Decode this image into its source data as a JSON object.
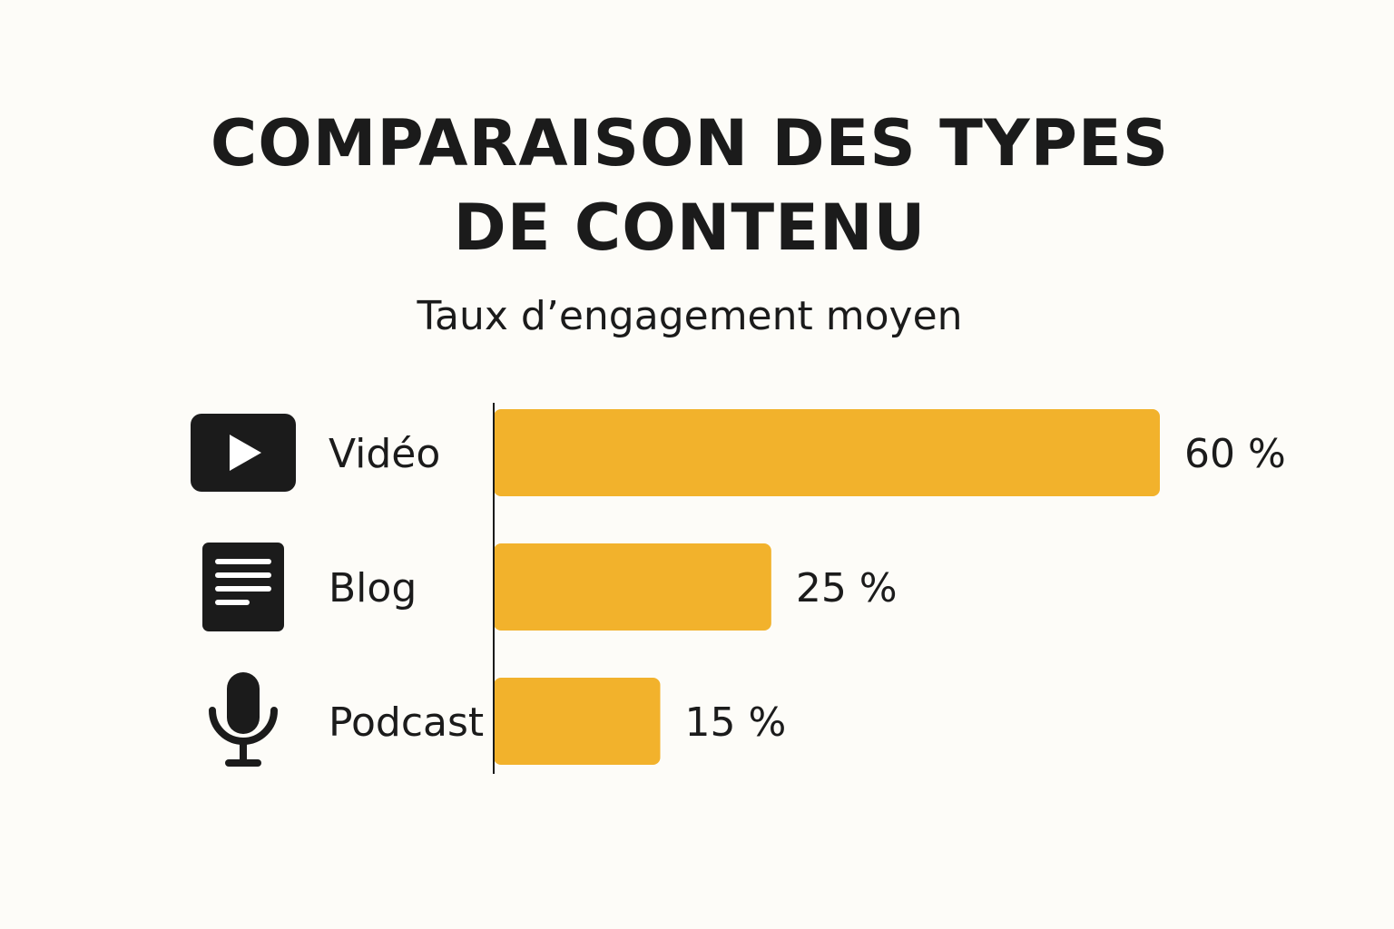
{
  "chart_data": {
    "type": "bar",
    "orientation": "horizontal",
    "title": "COMPARAISON DES TYPES DE CONTENU",
    "title_lines": [
      "COMPARAISON DES TYPES",
      "DE CONTENU"
    ],
    "subtitle": "Taux d’engagement moyen",
    "categories": [
      "Vidéo",
      "Blog",
      "Podcast"
    ],
    "icons": [
      "play-video-icon",
      "document-lines-icon",
      "microphone-icon"
    ],
    "values": [
      60,
      25,
      15
    ],
    "value_labels": [
      "60 %",
      "25 %",
      "15 %"
    ],
    "unit": "%",
    "bar_color": "#f2b22c",
    "grid": false,
    "legend": "none"
  }
}
